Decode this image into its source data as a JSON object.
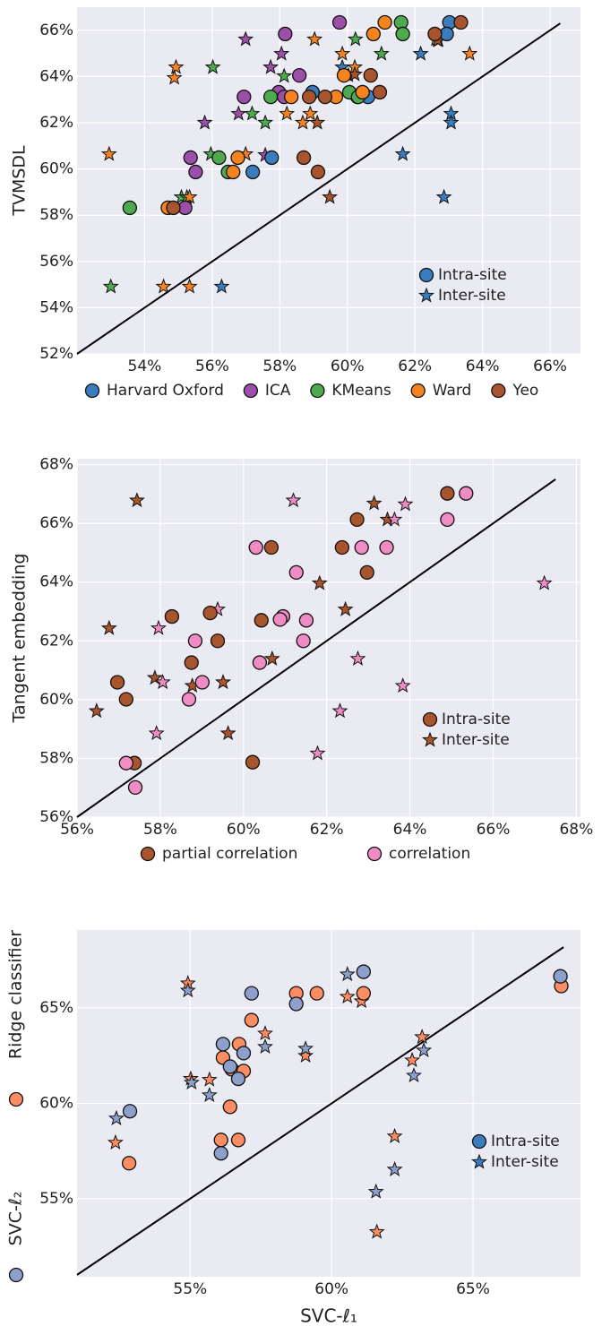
{
  "chart_data": [
    {
      "type": "scatter",
      "ylabel": "TVMSDL",
      "xlim": [
        52,
        66.9
      ],
      "ylim": [
        52,
        67
      ],
      "xticks": [
        {
          "value": 54,
          "label": "54%"
        },
        {
          "value": 56,
          "label": "56%"
        },
        {
          "value": 58,
          "label": "58%"
        },
        {
          "value": 60,
          "label": "60%"
        },
        {
          "value": 62,
          "label": "62%"
        },
        {
          "value": 64,
          "label": "64%"
        },
        {
          "value": 66,
          "label": "66%"
        }
      ],
      "yticks": [
        {
          "value": 52,
          "label": "52%"
        },
        {
          "value": 54,
          "label": "54%"
        },
        {
          "value": 56,
          "label": "56%"
        },
        {
          "value": 58,
          "label": "58%"
        },
        {
          "value": 60,
          "label": "60%"
        },
        {
          "value": 62,
          "label": "62%"
        },
        {
          "value": 64,
          "label": "64%"
        },
        {
          "value": 66,
          "label": "66%"
        }
      ],
      "grid": true,
      "legend": "bottom",
      "marker_legend": {
        "color": "#3a7dbf",
        "entries": [
          {
            "label": "Intra-site",
            "marker": "circle"
          },
          {
            "label": "Inter-site",
            "marker": "star"
          }
        ]
      },
      "series": [
        {
          "name": "Harvard Oxford",
          "color": "#3a7dbf",
          "intra": {
            "x": [
              63.02,
              62.94,
              60.3,
              60.61,
              58.97,
              57.2,
              57.76
            ],
            "y": [
              66.34,
              65.84,
              63.12,
              63.12,
              63.32,
              59.87,
              60.49
            ]
          },
          "inter": {
            "x": [
              62.17,
              62.7,
              59.85,
              63.07,
              63.07,
              61.64,
              62.86,
              56.28
            ],
            "y": [
              64.98,
              65.57,
              64.4,
              62.39,
              62.0,
              60.64,
              58.78,
              54.91
            ]
          }
        },
        {
          "name": "ICA",
          "color": "#9b4fa8",
          "intra": {
            "x": [
              59.77,
              58.16,
              58.58,
              57.97,
              58.13,
              56.94,
              55.36,
              55.51,
              55.2
            ],
            "y": [
              66.34,
              65.84,
              64.05,
              63.32,
              63.12,
              63.12,
              60.49,
              59.87,
              58.32
            ]
          },
          "inter": {
            "x": [
              56.99,
              57.73,
              58.05,
              55.78,
              56.78,
              57.57
            ],
            "y": [
              65.61,
              64.4,
              64.98,
              62.0,
              62.39,
              60.6
            ]
          }
        },
        {
          "name": "KMeans",
          "color": "#4eaa4e",
          "intra": {
            "x": [
              61.59,
              61.64,
              60.06,
              60.32,
              57.73,
              56.2,
              56.47,
              53.56
            ],
            "y": [
              66.34,
              65.84,
              63.32,
              63.12,
              63.12,
              60.49,
              59.87,
              58.32
            ]
          },
          "inter": {
            "x": [
              56.02,
              57.18,
              57.57,
              55.96,
              55.09,
              55.25,
              58.13,
              60.24,
              61.01,
              53.0,
              60.03
            ],
            "y": [
              64.4,
              62.39,
              62.0,
              60.64,
              58.78,
              58.78,
              64.02,
              65.61,
              64.98,
              54.91,
              64.05
            ]
          }
        },
        {
          "name": "Ward",
          "color": "#f5841f",
          "intra": {
            "x": [
              61.11,
              60.77,
              59.9,
              60.45,
              59.66,
              58.34,
              56.76,
              56.62,
              54.69
            ],
            "y": [
              66.34,
              65.84,
              64.05,
              63.32,
              63.12,
              63.12,
              60.49,
              59.87,
              58.32
            ]
          },
          "inter": {
            "x": [
              54.93,
              54.88,
              59.03,
              59.85,
              58.21,
              58.9,
              58.68,
              52.95,
              55.33,
              54.56,
              55.33,
              56.99,
              60.22,
              63.62,
              62.62
            ],
            "y": [
              64.4,
              63.94,
              65.61,
              64.98,
              62.39,
              62.39,
              62.0,
              60.64,
              58.78,
              54.91,
              54.91,
              60.64,
              64.4,
              64.98,
              65.61
            ]
          }
        },
        {
          "name": "Yeo",
          "color": "#a8542c",
          "intra": {
            "x": [
              63.36,
              62.59,
              60.69,
              60.96,
              59.34,
              58.87,
              58.71,
              59.13,
              54.85
            ],
            "y": [
              66.34,
              65.84,
              64.05,
              63.32,
              63.12,
              63.12,
              60.49,
              59.87,
              58.32
            ]
          },
          "inter": {
            "x": [
              59.11,
              59.48,
              62.67,
              60.22
            ],
            "y": [
              62.0,
              58.78,
              65.57,
              64.09
            ]
          }
        }
      ]
    },
    {
      "type": "scatter",
      "ylabel": "Tangent embedding",
      "xlim": [
        56,
        68.1
      ],
      "ylim": [
        56,
        68.2
      ],
      "xticks": [
        {
          "value": 56,
          "label": "56%"
        },
        {
          "value": 58,
          "label": "58%"
        },
        {
          "value": 60,
          "label": "60%"
        },
        {
          "value": 62,
          "label": "62%"
        },
        {
          "value": 64,
          "label": "64%"
        },
        {
          "value": 66,
          "label": "66%"
        },
        {
          "value": 68,
          "label": "68%"
        }
      ],
      "yticks": [
        {
          "value": 56,
          "label": "56%"
        },
        {
          "value": 58,
          "label": "58%"
        },
        {
          "value": 60,
          "label": "60%"
        },
        {
          "value": 62,
          "label": "62%"
        },
        {
          "value": 64,
          "label": "64%"
        },
        {
          "value": 66,
          "label": "66%"
        },
        {
          "value": 68,
          "label": "68%"
        }
      ],
      "grid": true,
      "legend": "bottom",
      "marker_legend": {
        "color": "#a8542c",
        "entries": [
          {
            "label": "Intra-site",
            "marker": "circle"
          },
          {
            "label": "Inter-site",
            "marker": "star"
          }
        ]
      },
      "series": [
        {
          "name": "partial correlation",
          "color": "#a8542c",
          "intra": {
            "x": [
              64.9,
              62.73,
              60.67,
              62.37,
              62.97,
              58.28,
              59.2,
              60.43,
              59.38,
              58.75,
              56.97,
              57.18,
              57.38,
              60.22
            ],
            "y": [
              67.02,
              66.13,
              65.18,
              65.18,
              64.33,
              62.83,
              62.95,
              62.7,
              62.0,
              61.26,
              60.59,
              60.01,
              57.84,
              57.87
            ]
          },
          "inter": {
            "x": [
              57.44,
              63.14,
              56.77,
              61.83,
              62.45,
              60.69,
              59.51,
              57.87,
              58.77,
              56.47,
              59.63,
              63.46
            ],
            "y": [
              66.78,
              66.68,
              62.43,
              63.96,
              63.07,
              61.39,
              60.59,
              60.74,
              60.47,
              59.61,
              58.85,
              66.13
            ]
          }
        },
        {
          "name": "correlation",
          "color": "#f08cc4",
          "intra": {
            "x": [
              65.35,
              64.9,
              60.3,
              62.84,
              63.44,
              61.27,
              60.95,
              60.88,
              61.51,
              61.44,
              58.84,
              60.39,
              59.01,
              58.69,
              57.18,
              57.4
            ],
            "y": [
              67.02,
              66.13,
              65.18,
              65.18,
              65.18,
              64.33,
              62.83,
              62.73,
              62.7,
              62.0,
              62.0,
              61.26,
              60.59,
              60.01,
              57.84,
              57.01
            ]
          },
          "inter": {
            "x": [
              61.2,
              63.89,
              63.63,
              59.38,
              57.96,
              67.23,
              62.75,
              58.06,
              63.83,
              62.32,
              57.91,
              61.78
            ],
            "y": [
              66.78,
              66.65,
              66.13,
              63.07,
              62.43,
              63.96,
              61.39,
              60.59,
              60.47,
              59.61,
              58.85,
              58.17
            ]
          }
        }
      ]
    },
    {
      "type": "scatter",
      "xlabel": "SVC-ℓ₁",
      "xlim": [
        51,
        68.8
      ],
      "ylim": [
        50.9,
        69.1
      ],
      "xticks": [
        {
          "value": 55,
          "label": "55%"
        },
        {
          "value": 60,
          "label": "60%"
        },
        {
          "value": 65,
          "label": "65%"
        }
      ],
      "yticks": [
        {
          "value": 55,
          "label": "55%"
        },
        {
          "value": 60,
          "label": "60%"
        },
        {
          "value": 65,
          "label": "65%"
        }
      ],
      "grid": true,
      "legend": "left",
      "marker_legend": {
        "color": "#3a7dbf",
        "entries": [
          {
            "label": "Intra-site",
            "marker": "circle"
          },
          {
            "label": "Inter-site",
            "marker": "star"
          }
        ]
      },
      "series": [
        {
          "name": "Ridge classifier",
          "color": "#fc8d62",
          "intra": {
            "x": [
              68.12,
              61.13,
              58.75,
              59.48,
              57.17,
              56.73,
              56.16,
              56.47,
              56.89,
              56.41,
              56.09,
              56.7,
              52.84
            ],
            "y": [
              66.16,
              65.78,
              65.78,
              65.78,
              64.37,
              63.11,
              62.4,
              61.79,
              61.7,
              59.82,
              58.08,
              58.08,
              56.86
            ]
          },
          "inter": {
            "x": [
              54.92,
              60.56,
              61.06,
              57.65,
              59.08,
              63.2,
              62.85,
              55.02,
              55.68,
              52.36,
              62.23,
              61.6
            ],
            "y": [
              66.3,
              65.6,
              65.36,
              63.67,
              62.5,
              63.48,
              62.26,
              61.29,
              61.24,
              57.94,
              58.27,
              53.25
            ]
          }
        },
        {
          "name": "SVC-ℓ₂",
          "color": "#8da0cb",
          "intra": {
            "x": [
              68.09,
              61.13,
              57.17,
              58.75,
              56.16,
              56.89,
              56.41,
              56.7,
              52.87,
              56.09
            ],
            "y": [
              66.67,
              66.91,
              65.78,
              65.22,
              63.11,
              62.64,
              61.93,
              61.29,
              59.59,
              57.38
            ]
          },
          "inter": {
            "x": [
              54.92,
              60.56,
              57.65,
              59.08,
              63.26,
              62.91,
              55.05,
              55.68,
              52.39,
              62.23,
              61.57
            ],
            "y": [
              65.92,
              66.77,
              62.97,
              62.87,
              62.78,
              61.46,
              61.09,
              60.43,
              59.21,
              56.53,
              55.36
            ]
          }
        }
      ]
    }
  ]
}
